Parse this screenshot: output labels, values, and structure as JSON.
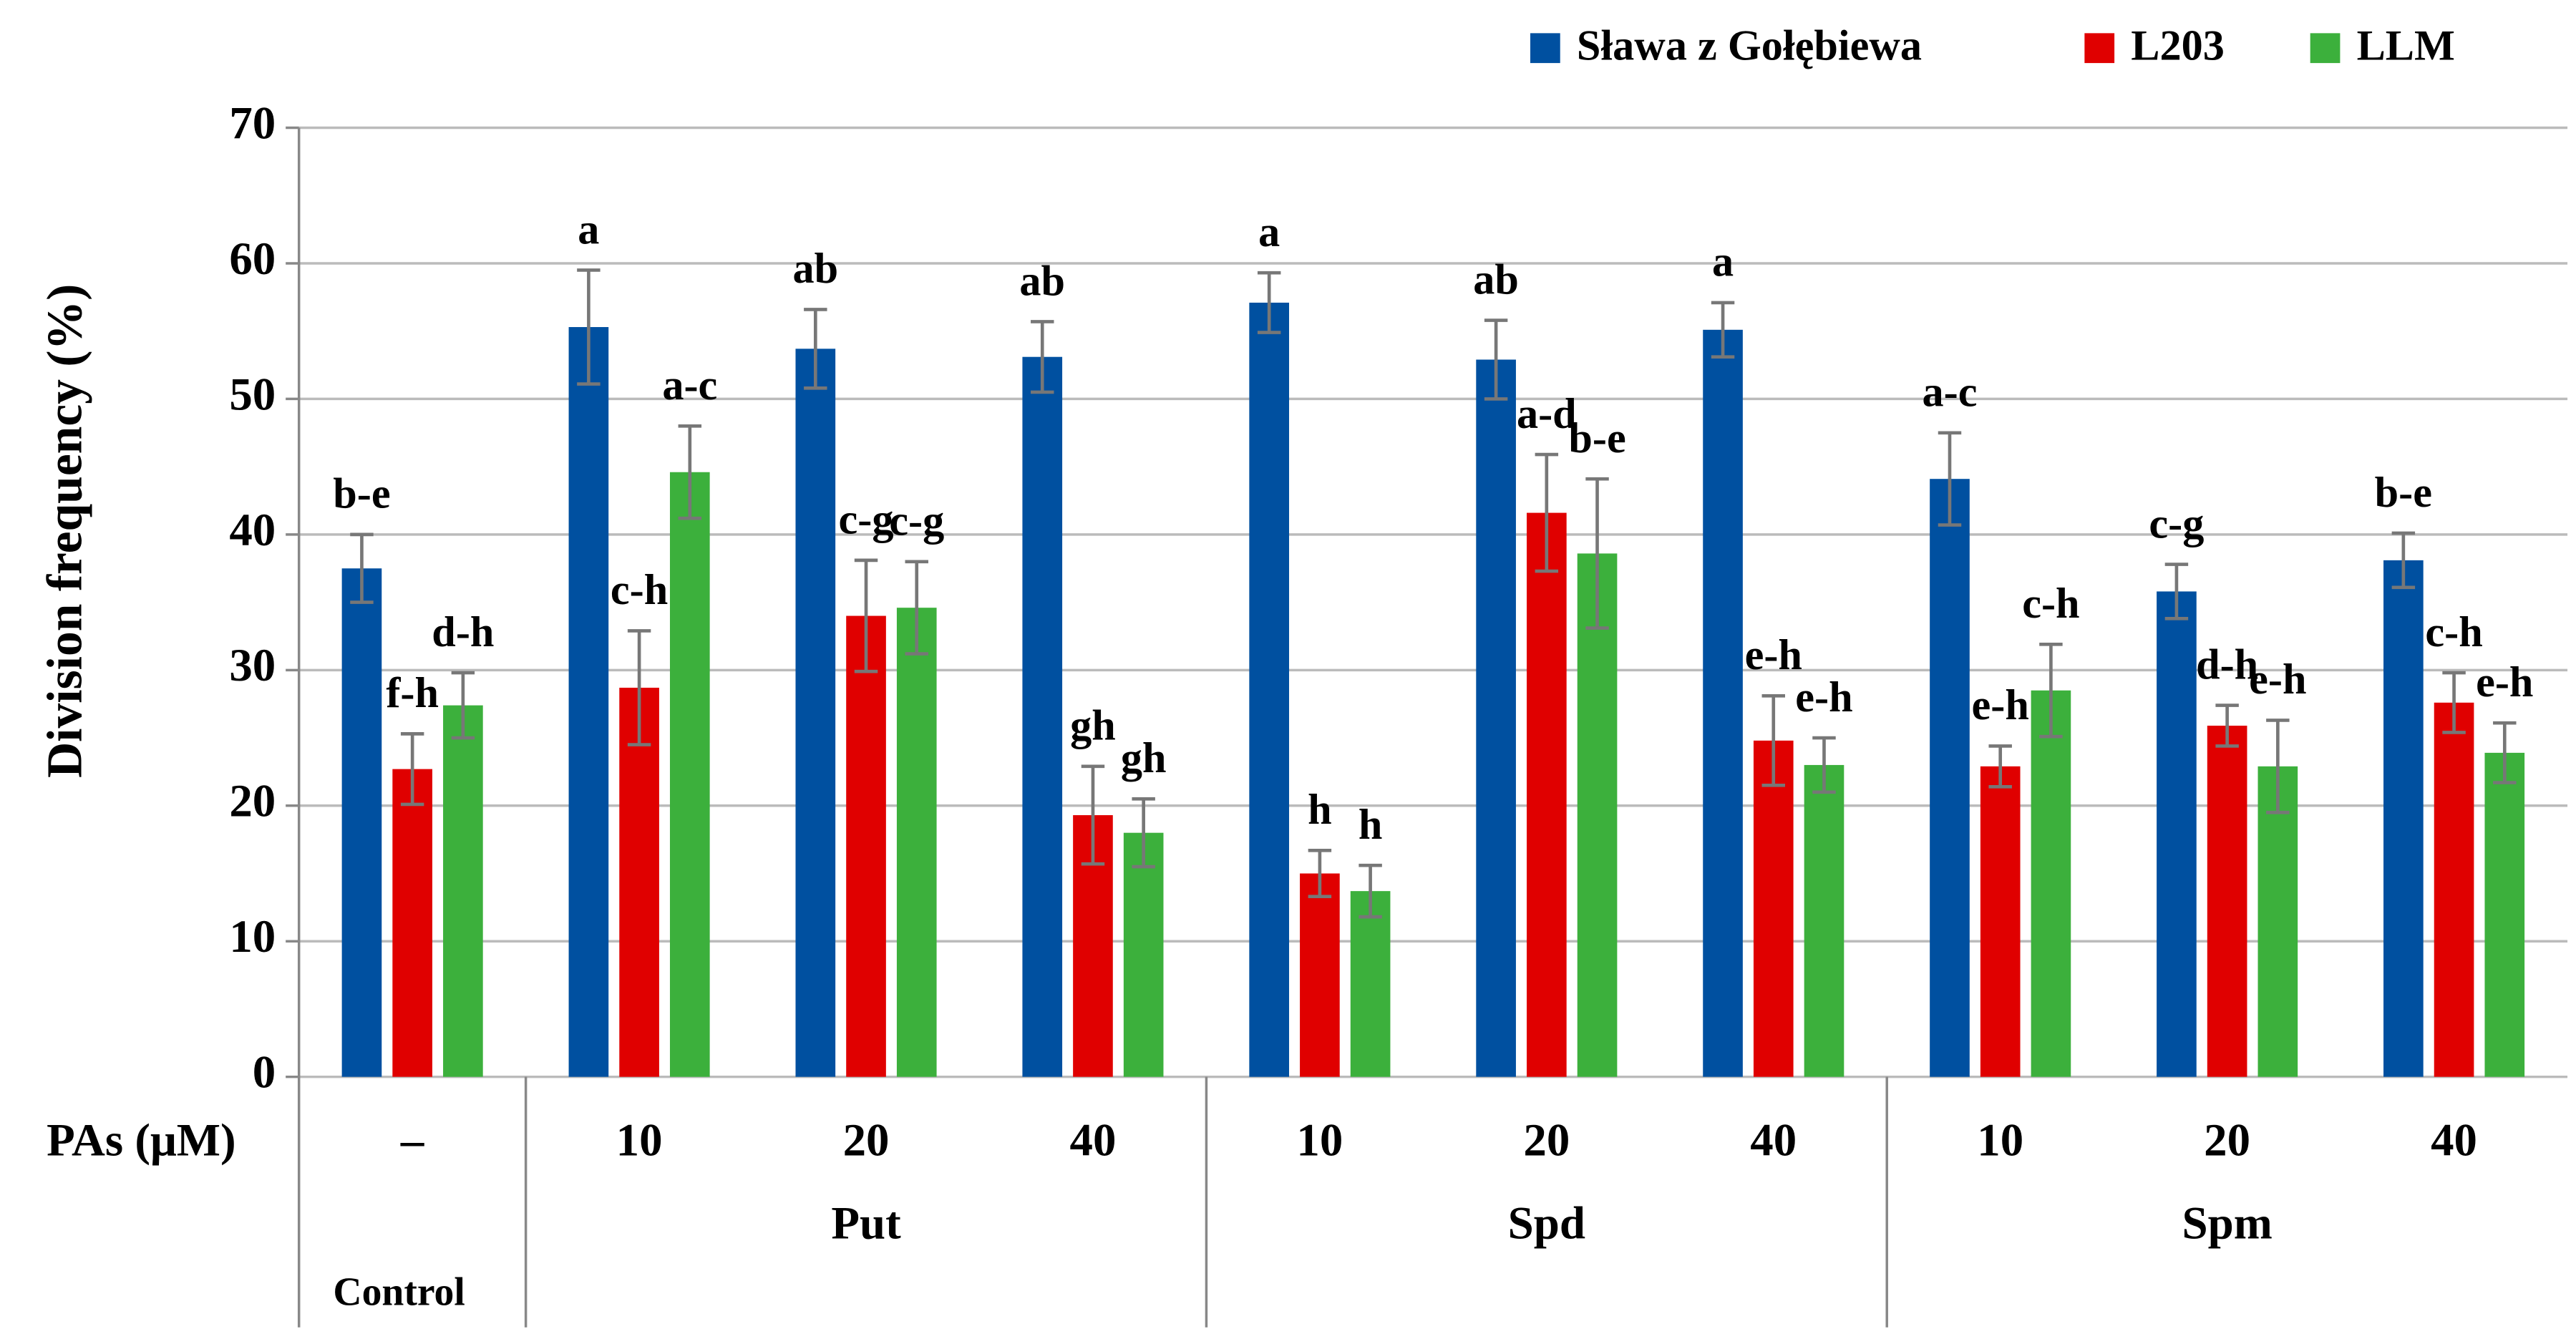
{
  "chart_data": {
    "type": "bar",
    "y_label": "Division frequency (%)",
    "x_row_label": "PAs (μM)",
    "categories": [
      "–",
      "10",
      "20",
      "40",
      "10",
      "20",
      "40",
      "10",
      "20",
      "40"
    ],
    "groups": [
      {
        "label": "Control",
        "span": 1
      },
      {
        "label": "Put",
        "span": 3
      },
      {
        "label": "Spd",
        "span": 3
      },
      {
        "label": "Spm",
        "span": 3
      }
    ],
    "series": [
      {
        "name": "Sława z Gołębiewa",
        "color": "#0050a0",
        "values": [
          37.5,
          55.3,
          53.7,
          53.1,
          57.1,
          52.9,
          55.1,
          44.1,
          35.8,
          38.1
        ],
        "errors": [
          2.5,
          4.2,
          2.9,
          2.6,
          2.2,
          2.9,
          2.0,
          3.4,
          2.0,
          2.0
        ],
        "letters": [
          "b-e",
          "a",
          "ab",
          "ab",
          "a",
          "ab",
          "a",
          "a-c",
          "c-g",
          "b-e"
        ]
      },
      {
        "name": "L203",
        "color": "#e00000",
        "values": [
          22.7,
          28.7,
          34.0,
          19.3,
          15.0,
          41.6,
          24.8,
          22.9,
          25.9,
          27.6
        ],
        "errors": [
          2.6,
          4.2,
          4.1,
          3.6,
          1.7,
          4.3,
          3.3,
          1.5,
          1.5,
          2.2
        ],
        "letters": [
          "f-h",
          "c-h",
          "c-g",
          "gh",
          "h",
          "a-d",
          "e-h",
          "e-h",
          "d-h",
          "c-h"
        ]
      },
      {
        "name": "LLM",
        "color": "#3cb03c",
        "values": [
          27.4,
          44.6,
          34.6,
          18.0,
          13.7,
          38.6,
          23.0,
          28.5,
          22.9,
          23.9
        ],
        "errors": [
          2.4,
          3.4,
          3.4,
          2.5,
          1.9,
          5.5,
          2.0,
          3.4,
          3.4,
          2.2
        ],
        "letters": [
          "d-h",
          "a-c",
          "c-g",
          "gh",
          "h",
          "b-e",
          "e-h",
          "c-h",
          "e-h",
          "e-h"
        ]
      }
    ],
    "ylim": [
      0,
      70
    ],
    "yticks": [
      0,
      10,
      20,
      30,
      40,
      50,
      60,
      70
    ],
    "grid": true,
    "legend": "top-right"
  }
}
